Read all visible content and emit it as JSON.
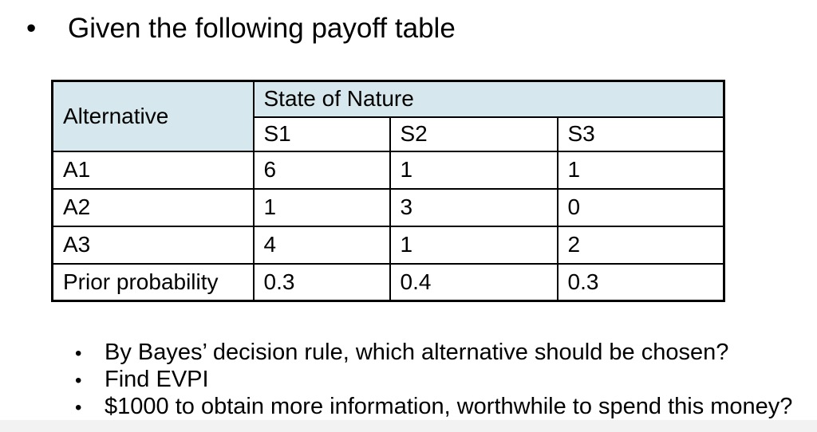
{
  "slide": {
    "background": "#ffffff",
    "bottom_strip_color": "#f3f2f3"
  },
  "title": {
    "bullet_glyph": "•",
    "text": "Given the following payoff table"
  },
  "payoff_table": {
    "header_bg": "#d6e8ed",
    "border_color": "#000000",
    "corner_header": "Alternative",
    "group_header": "State of Nature",
    "state_columns": [
      "S1",
      "S2",
      "S3"
    ],
    "rows": [
      {
        "label": "A1",
        "values": [
          "6",
          "1",
          "1"
        ]
      },
      {
        "label": "A2",
        "values": [
          "1",
          "3",
          "0"
        ]
      },
      {
        "label": "A3",
        "values": [
          "4",
          "1",
          "2"
        ]
      },
      {
        "label": "Prior probability",
        "values": [
          "0.3",
          "0.4",
          "0.3"
        ]
      }
    ]
  },
  "questions": {
    "bullet_glyph": "•",
    "items": [
      "By Bayes’ decision rule, which alternative should be chosen?",
      "Find EVPI",
      "$1000 to obtain more information, worthwhile to spend this money?"
    ]
  }
}
